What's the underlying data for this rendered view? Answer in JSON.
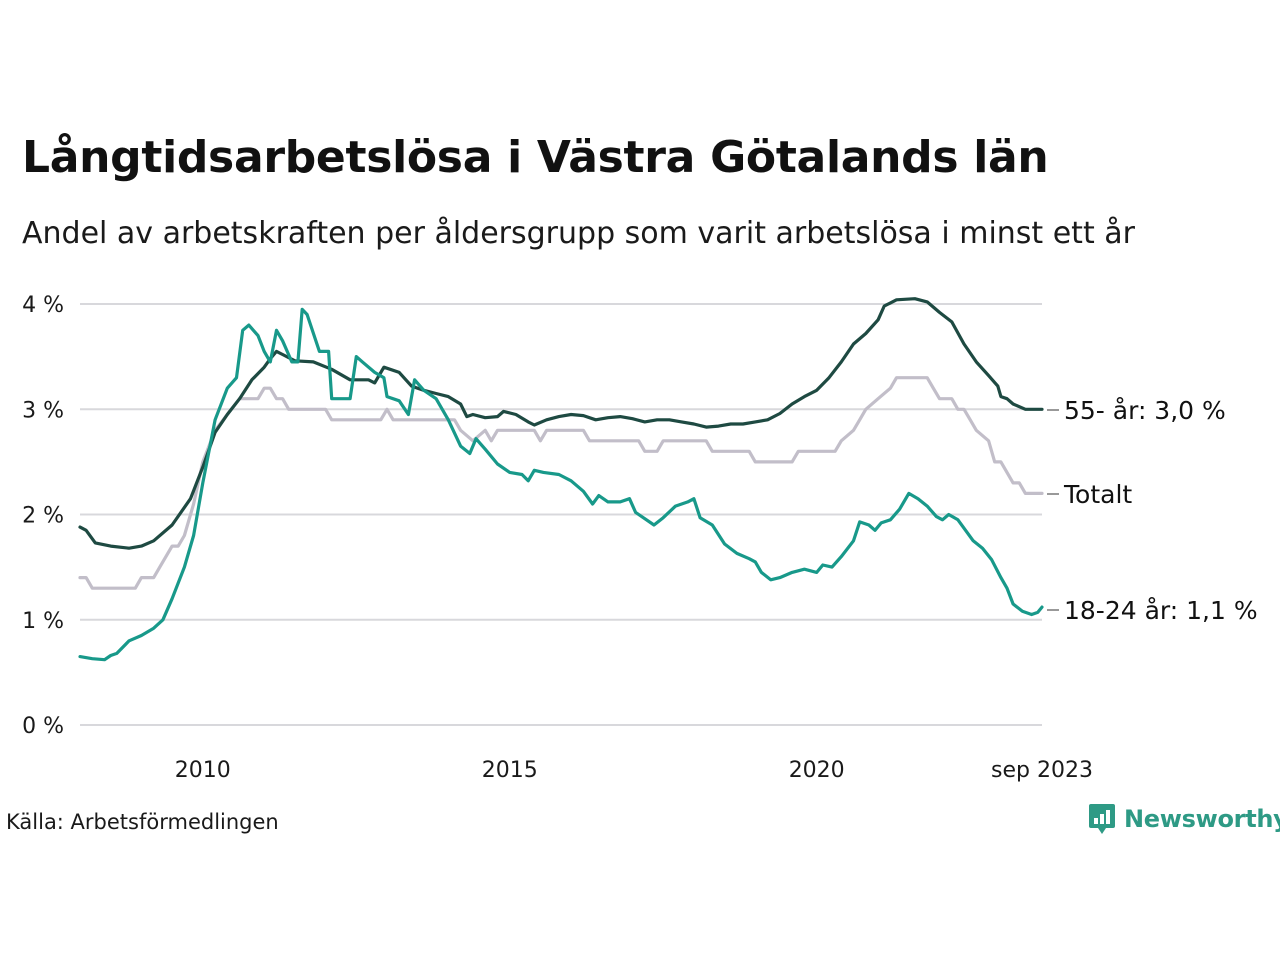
{
  "title": "Långtidsarbetslösa i Västra Götalands län",
  "subtitle": "Andel av arbetskraften per åldersgrupp som varit arbetslösa i minst ett år",
  "source": "Källa: Arbetsförmedlingen",
  "brand": "Newsworthy",
  "colors": {
    "age55": "#1e4a42",
    "total": "#c2bec9",
    "age1824": "#18998a",
    "grid": "#d8d8dc"
  },
  "chart_data": {
    "type": "line",
    "title": "Långtidsarbetslösa i Västra Götalands län",
    "xlabel": "",
    "ylabel": "",
    "xlim": [
      2008.0,
      2023.67
    ],
    "ylim": [
      0,
      4
    ],
    "yticks": [
      0,
      1,
      2,
      3,
      4
    ],
    "ytick_labels": [
      "0 %",
      "1 %",
      "2 %",
      "3 %",
      "4 %"
    ],
    "xticks": [
      2010,
      2015,
      2020,
      2023.67
    ],
    "xtick_labels": [
      "2010",
      "2015",
      "2020",
      "sep 2023"
    ],
    "grid": true,
    "series": [
      {
        "name": "Totalt",
        "label": "Totalt",
        "color": "#c2bec9",
        "points": [
          [
            2008.0,
            1.4
          ],
          [
            2008.1,
            1.4
          ],
          [
            2008.2,
            1.3
          ],
          [
            2008.9,
            1.3
          ],
          [
            2009.0,
            1.4
          ],
          [
            2009.2,
            1.4
          ],
          [
            2009.3,
            1.5
          ],
          [
            2009.5,
            1.7
          ],
          [
            2009.6,
            1.7
          ],
          [
            2009.7,
            1.8
          ],
          [
            2009.85,
            2.1
          ],
          [
            2010.0,
            2.5
          ],
          [
            2010.2,
            2.8
          ],
          [
            2010.4,
            2.95
          ],
          [
            2010.6,
            3.1
          ],
          [
            2010.9,
            3.1
          ],
          [
            2011.0,
            3.2
          ],
          [
            2011.1,
            3.2
          ],
          [
            2011.2,
            3.1
          ],
          [
            2011.3,
            3.1
          ],
          [
            2011.4,
            3.0
          ],
          [
            2012.0,
            3.0
          ],
          [
            2012.1,
            2.9
          ],
          [
            2012.9,
            2.9
          ],
          [
            2013.0,
            3.0
          ],
          [
            2013.1,
            2.9
          ],
          [
            2014.1,
            2.9
          ],
          [
            2014.2,
            2.8
          ],
          [
            2014.4,
            2.7
          ],
          [
            2014.6,
            2.8
          ],
          [
            2014.7,
            2.7
          ],
          [
            2014.8,
            2.8
          ],
          [
            2015.4,
            2.8
          ],
          [
            2015.5,
            2.7
          ],
          [
            2015.6,
            2.8
          ],
          [
            2016.2,
            2.8
          ],
          [
            2016.3,
            2.7
          ],
          [
            2017.1,
            2.7
          ],
          [
            2017.2,
            2.6
          ],
          [
            2017.4,
            2.6
          ],
          [
            2017.5,
            2.7
          ],
          [
            2018.2,
            2.7
          ],
          [
            2018.3,
            2.6
          ],
          [
            2018.9,
            2.6
          ],
          [
            2019.0,
            2.5
          ],
          [
            2019.6,
            2.5
          ],
          [
            2019.7,
            2.6
          ],
          [
            2020.3,
            2.6
          ],
          [
            2020.4,
            2.7
          ],
          [
            2020.6,
            2.8
          ],
          [
            2020.7,
            2.9
          ],
          [
            2020.8,
            3.0
          ],
          [
            2021.0,
            3.1
          ],
          [
            2021.2,
            3.2
          ],
          [
            2021.3,
            3.3
          ],
          [
            2021.8,
            3.3
          ],
          [
            2021.9,
            3.2
          ],
          [
            2022.0,
            3.1
          ],
          [
            2022.2,
            3.1
          ],
          [
            2022.3,
            3.0
          ],
          [
            2022.4,
            3.0
          ],
          [
            2022.5,
            2.9
          ],
          [
            2022.6,
            2.8
          ],
          [
            2022.8,
            2.7
          ],
          [
            2022.9,
            2.5
          ],
          [
            2023.0,
            2.5
          ],
          [
            2023.1,
            2.4
          ],
          [
            2023.2,
            2.3
          ],
          [
            2023.3,
            2.3
          ],
          [
            2023.4,
            2.2
          ],
          [
            2023.67,
            2.2
          ]
        ]
      },
      {
        "name": "55- år",
        "label": "55- år: 3,0 %",
        "color": "#1e4a42",
        "points": [
          [
            2008.0,
            1.88
          ],
          [
            2008.1,
            1.85
          ],
          [
            2008.25,
            1.73
          ],
          [
            2008.5,
            1.7
          ],
          [
            2008.8,
            1.68
          ],
          [
            2009.0,
            1.7
          ],
          [
            2009.2,
            1.75
          ],
          [
            2009.5,
            1.9
          ],
          [
            2009.8,
            2.15
          ],
          [
            2010.0,
            2.45
          ],
          [
            2010.2,
            2.78
          ],
          [
            2010.4,
            2.95
          ],
          [
            2010.6,
            3.1
          ],
          [
            2010.8,
            3.28
          ],
          [
            2011.0,
            3.4
          ],
          [
            2011.1,
            3.48
          ],
          [
            2011.2,
            3.55
          ],
          [
            2011.3,
            3.52
          ],
          [
            2011.5,
            3.46
          ],
          [
            2011.8,
            3.45
          ],
          [
            2012.1,
            3.38
          ],
          [
            2012.4,
            3.28
          ],
          [
            2012.7,
            3.28
          ],
          [
            2012.8,
            3.25
          ],
          [
            2012.95,
            3.4
          ],
          [
            2013.2,
            3.35
          ],
          [
            2013.4,
            3.22
          ],
          [
            2013.6,
            3.18
          ],
          [
            2013.8,
            3.15
          ],
          [
            2014.0,
            3.12
          ],
          [
            2014.2,
            3.05
          ],
          [
            2014.3,
            2.93
          ],
          [
            2014.4,
            2.95
          ],
          [
            2014.6,
            2.92
          ],
          [
            2014.8,
            2.93
          ],
          [
            2014.9,
            2.98
          ],
          [
            2015.1,
            2.95
          ],
          [
            2015.3,
            2.88
          ],
          [
            2015.4,
            2.85
          ],
          [
            2015.6,
            2.9
          ],
          [
            2015.8,
            2.93
          ],
          [
            2016.0,
            2.95
          ],
          [
            2016.2,
            2.94
          ],
          [
            2016.4,
            2.9
          ],
          [
            2016.6,
            2.92
          ],
          [
            2016.8,
            2.93
          ],
          [
            2017.0,
            2.91
          ],
          [
            2017.2,
            2.88
          ],
          [
            2017.4,
            2.9
          ],
          [
            2017.6,
            2.9
          ],
          [
            2017.8,
            2.88
          ],
          [
            2018.0,
            2.86
          ],
          [
            2018.2,
            2.83
          ],
          [
            2018.4,
            2.84
          ],
          [
            2018.6,
            2.86
          ],
          [
            2018.8,
            2.86
          ],
          [
            2019.0,
            2.88
          ],
          [
            2019.2,
            2.9
          ],
          [
            2019.4,
            2.96
          ],
          [
            2019.6,
            3.05
          ],
          [
            2019.8,
            3.12
          ],
          [
            2020.0,
            3.18
          ],
          [
            2020.2,
            3.3
          ],
          [
            2020.4,
            3.45
          ],
          [
            2020.6,
            3.62
          ],
          [
            2020.8,
            3.72
          ],
          [
            2021.0,
            3.85
          ],
          [
            2021.1,
            3.98
          ],
          [
            2021.3,
            4.04
          ],
          [
            2021.6,
            4.05
          ],
          [
            2021.8,
            4.02
          ],
          [
            2022.0,
            3.92
          ],
          [
            2022.2,
            3.83
          ],
          [
            2022.4,
            3.62
          ],
          [
            2022.6,
            3.45
          ],
          [
            2022.8,
            3.32
          ],
          [
            2022.95,
            3.22
          ],
          [
            2023.0,
            3.12
          ],
          [
            2023.1,
            3.1
          ],
          [
            2023.2,
            3.05
          ],
          [
            2023.4,
            3.0
          ],
          [
            2023.67,
            3.0
          ]
        ]
      },
      {
        "name": "18-24 år",
        "label": "18-24 år: 1,1 %",
        "color": "#18998a",
        "points": [
          [
            2008.0,
            0.65
          ],
          [
            2008.2,
            0.63
          ],
          [
            2008.4,
            0.62
          ],
          [
            2008.5,
            0.66
          ],
          [
            2008.6,
            0.68
          ],
          [
            2008.8,
            0.8
          ],
          [
            2009.0,
            0.85
          ],
          [
            2009.2,
            0.92
          ],
          [
            2009.35,
            1.0
          ],
          [
            2009.5,
            1.2
          ],
          [
            2009.7,
            1.5
          ],
          [
            2009.85,
            1.8
          ],
          [
            2010.0,
            2.3
          ],
          [
            2010.2,
            2.9
          ],
          [
            2010.4,
            3.2
          ],
          [
            2010.55,
            3.3
          ],
          [
            2010.65,
            3.75
          ],
          [
            2010.75,
            3.8
          ],
          [
            2010.9,
            3.7
          ],
          [
            2011.0,
            3.55
          ],
          [
            2011.1,
            3.45
          ],
          [
            2011.2,
            3.75
          ],
          [
            2011.3,
            3.65
          ],
          [
            2011.45,
            3.45
          ],
          [
            2011.55,
            3.45
          ],
          [
            2011.62,
            3.95
          ],
          [
            2011.7,
            3.9
          ],
          [
            2011.9,
            3.55
          ],
          [
            2012.05,
            3.55
          ],
          [
            2012.1,
            3.1
          ],
          [
            2012.3,
            3.1
          ],
          [
            2012.4,
            3.1
          ],
          [
            2012.5,
            3.5
          ],
          [
            2012.6,
            3.45
          ],
          [
            2012.8,
            3.35
          ],
          [
            2012.95,
            3.3
          ],
          [
            2013.0,
            3.12
          ],
          [
            2013.2,
            3.08
          ],
          [
            2013.35,
            2.95
          ],
          [
            2013.45,
            3.28
          ],
          [
            2013.6,
            3.18
          ],
          [
            2013.8,
            3.1
          ],
          [
            2014.0,
            2.9
          ],
          [
            2014.2,
            2.65
          ],
          [
            2014.35,
            2.58
          ],
          [
            2014.45,
            2.72
          ],
          [
            2014.6,
            2.62
          ],
          [
            2014.8,
            2.48
          ],
          [
            2015.0,
            2.4
          ],
          [
            2015.2,
            2.38
          ],
          [
            2015.3,
            2.32
          ],
          [
            2015.4,
            2.42
          ],
          [
            2015.55,
            2.4
          ],
          [
            2015.8,
            2.38
          ],
          [
            2016.0,
            2.32
          ],
          [
            2016.2,
            2.22
          ],
          [
            2016.35,
            2.1
          ],
          [
            2016.45,
            2.18
          ],
          [
            2016.6,
            2.12
          ],
          [
            2016.8,
            2.12
          ],
          [
            2016.95,
            2.15
          ],
          [
            2017.05,
            2.02
          ],
          [
            2017.2,
            1.96
          ],
          [
            2017.35,
            1.9
          ],
          [
            2017.5,
            1.97
          ],
          [
            2017.7,
            2.08
          ],
          [
            2017.9,
            2.12
          ],
          [
            2018.0,
            2.15
          ],
          [
            2018.1,
            1.97
          ],
          [
            2018.3,
            1.9
          ],
          [
            2018.5,
            1.72
          ],
          [
            2018.7,
            1.63
          ],
          [
            2018.9,
            1.58
          ],
          [
            2019.0,
            1.55
          ],
          [
            2019.1,
            1.45
          ],
          [
            2019.25,
            1.38
          ],
          [
            2019.4,
            1.4
          ],
          [
            2019.6,
            1.45
          ],
          [
            2019.8,
            1.48
          ],
          [
            2020.0,
            1.45
          ],
          [
            2020.1,
            1.52
          ],
          [
            2020.25,
            1.5
          ],
          [
            2020.4,
            1.6
          ],
          [
            2020.6,
            1.75
          ],
          [
            2020.7,
            1.93
          ],
          [
            2020.85,
            1.9
          ],
          [
            2020.95,
            1.85
          ],
          [
            2021.05,
            1.92
          ],
          [
            2021.2,
            1.95
          ],
          [
            2021.35,
            2.05
          ],
          [
            2021.5,
            2.2
          ],
          [
            2021.65,
            2.15
          ],
          [
            2021.8,
            2.08
          ],
          [
            2021.95,
            1.98
          ],
          [
            2022.05,
            1.95
          ],
          [
            2022.15,
            2.0
          ],
          [
            2022.3,
            1.95
          ],
          [
            2022.45,
            1.83
          ],
          [
            2022.55,
            1.75
          ],
          [
            2022.7,
            1.68
          ],
          [
            2022.85,
            1.57
          ],
          [
            2023.0,
            1.4
          ],
          [
            2023.1,
            1.3
          ],
          [
            2023.2,
            1.15
          ],
          [
            2023.35,
            1.08
          ],
          [
            2023.5,
            1.05
          ],
          [
            2023.6,
            1.07
          ],
          [
            2023.67,
            1.12
          ]
        ]
      }
    ]
  }
}
